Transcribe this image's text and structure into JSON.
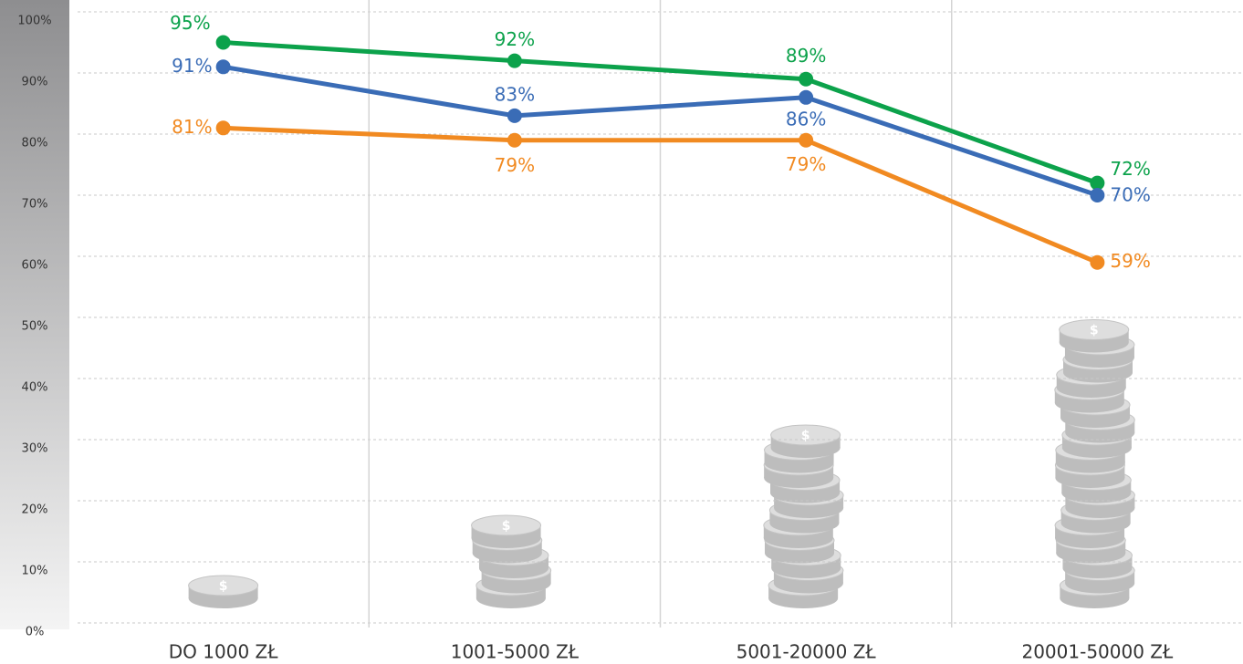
{
  "chart_data": {
    "type": "line",
    "categories": [
      "DO 1000 ZŁ",
      "1001-5000 ZŁ",
      "5001-20000 ZŁ",
      "20001-50000 ZŁ"
    ],
    "series": [
      {
        "color": "#0ca24b",
        "values": [
          95,
          92,
          89,
          72
        ],
        "value_labels": [
          "95%",
          "92%",
          "89%",
          "72%"
        ]
      },
      {
        "color": "#3a6cb6",
        "values": [
          91,
          83,
          86,
          70
        ],
        "value_labels": [
          "91%",
          "83%",
          "86%",
          "70%"
        ]
      },
      {
        "color": "#f18a21",
        "values": [
          81,
          79,
          79,
          59
        ],
        "value_labels": [
          "81%",
          "79%",
          "79%",
          "59%"
        ]
      }
    ],
    "ylim": [
      0,
      100
    ],
    "yticks": [
      {
        "value": 0,
        "label": "0%"
      },
      {
        "value": 10,
        "label": "10%"
      },
      {
        "value": 20,
        "label": "20%"
      },
      {
        "value": 30,
        "label": "30%"
      },
      {
        "value": 40,
        "label": "40%"
      },
      {
        "value": 50,
        "label": "50%"
      },
      {
        "value": 60,
        "label": "60%"
      },
      {
        "value": 70,
        "label": "70%"
      },
      {
        "value": 80,
        "label": "80%"
      },
      {
        "value": 90,
        "label": "90%"
      },
      {
        "value": 100,
        "label": "100%"
      }
    ],
    "grid": true
  }
}
